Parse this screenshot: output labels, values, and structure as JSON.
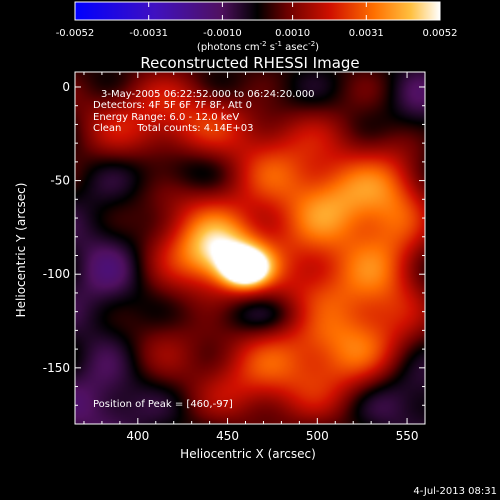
{
  "chart_data": {
    "type": "heatmap",
    "title": "Reconstructed RHESSI Image",
    "xlabel": "Heliocentric X (arcsec)",
    "ylabel": "Heliocentric Y (arcsec)",
    "xlim": [
      365,
      560
    ],
    "ylim": [
      -180,
      8
    ],
    "x_ticks": [
      400,
      450,
      500,
      550
    ],
    "y_ticks": [
      0,
      -50,
      -100,
      -150
    ],
    "colorbar": {
      "range": [
        -0.0052,
        0.0052
      ],
      "ticks": [
        "-0.0052",
        "-0.0031",
        "-0.0010",
        "0.0010",
        "0.0031",
        "0.0052"
      ],
      "unit_base": "(photons cm",
      "unit_sup1": "-2",
      "unit_mid": " s",
      "unit_sup2": "-1",
      "unit_end": " asec",
      "unit_sup3": "-2",
      "unit_close": ")"
    },
    "annotations": [
      "3-May-2005 06:22:52.000 to 06:24:20.000",
      "Detectors: 4F 5F 6F 7F 8F, Att 0",
      "Energy Range: 6.0 - 12.0 keV",
      "Clean     Total counts: 4.14E+03"
    ],
    "peak_label": "Position of Peak = [460,-97]",
    "peak": [
      460,
      -97
    ],
    "sources": [
      {
        "x": 460,
        "y": -97,
        "value": 0.0052,
        "sx": 9,
        "sy": 7
      },
      {
        "x": 446,
        "y": -90,
        "value": 0.0036,
        "sx": 16,
        "sy": 12
      },
      {
        "x": 430,
        "y": -75,
        "value": 0.002,
        "sx": 25,
        "sy": 20
      },
      {
        "x": 500,
        "y": -80,
        "value": 0.0022,
        "sx": 30,
        "sy": 45
      },
      {
        "x": 515,
        "y": -60,
        "value": 0.0018,
        "sx": 20,
        "sy": 15
      },
      {
        "x": 545,
        "y": -55,
        "value": 0.0016,
        "sx": 14,
        "sy": 22
      },
      {
        "x": 490,
        "y": -150,
        "value": 0.0017,
        "sx": 35,
        "sy": 18
      },
      {
        "x": 520,
        "y": -130,
        "value": 0.0016,
        "sx": 20,
        "sy": 25
      },
      {
        "x": 400,
        "y": -20,
        "value": 0.0017,
        "sx": 28,
        "sy": 18
      },
      {
        "x": 440,
        "y": -15,
        "value": 0.0015,
        "sx": 25,
        "sy": 15
      },
      {
        "x": 475,
        "y": -40,
        "value": 0.0012,
        "sx": 18,
        "sy": 15
      },
      {
        "x": 540,
        "y": -100,
        "value": 0.0014,
        "sx": 15,
        "sy": 25
      },
      {
        "x": 410,
        "y": -130,
        "value": 0.001,
        "sx": 20,
        "sy": 20
      },
      {
        "x": 460,
        "y": -160,
        "value": 0.001,
        "sx": 20,
        "sy": 15
      },
      {
        "x": 385,
        "y": -100,
        "value": -0.0012,
        "sx": 18,
        "sy": 30
      },
      {
        "x": 420,
        "y": -45,
        "value": -0.0013,
        "sx": 20,
        "sy": 10
      },
      {
        "x": 470,
        "y": -122,
        "value": -0.0012,
        "sx": 25,
        "sy": 8
      },
      {
        "x": 545,
        "y": -165,
        "value": -0.0014,
        "sx": 20,
        "sy": 14
      },
      {
        "x": 380,
        "y": -170,
        "value": -0.0012,
        "sx": 18,
        "sy": 15
      },
      {
        "x": 470,
        "y": -5,
        "value": -0.0008,
        "sx": 22,
        "sy": 10
      },
      {
        "x": 555,
        "y": -15,
        "value": -0.001,
        "sx": 12,
        "sy": 15
      }
    ]
  },
  "footer": {
    "date": "4-Jul-2013 08:31"
  }
}
